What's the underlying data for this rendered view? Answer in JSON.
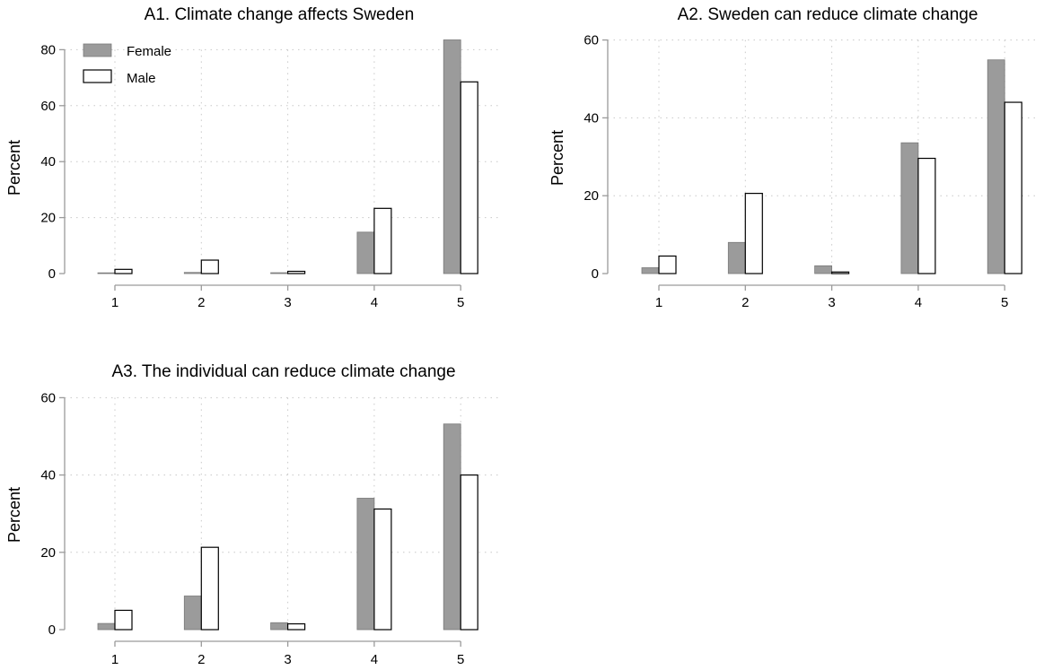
{
  "chart_data": [
    {
      "type": "bar",
      "title": "A1. Climate change affects Sweden",
      "ylabel": "Percent",
      "xlabel": "",
      "categories": [
        "1",
        "2",
        "3",
        "4",
        "5"
      ],
      "ylim": [
        0,
        83
      ],
      "yticks": [
        "0",
        "20",
        "40",
        "60",
        "80"
      ],
      "grid": true,
      "legend": "top-left",
      "series": [
        {
          "name": "Female",
          "values": [
            0.2,
            0.4,
            0.3,
            14.8,
            83.5
          ],
          "color": "#9b9b9b"
        },
        {
          "name": "Male",
          "values": [
            1.5,
            4.8,
            0.8,
            23.3,
            68.5
          ],
          "color": "#ffffff"
        }
      ]
    },
    {
      "type": "bar",
      "title": "A2. Sweden can reduce climate change",
      "ylabel": "Percent",
      "xlabel": "",
      "categories": [
        "1",
        "2",
        "3",
        "4",
        "5"
      ],
      "ylim": [
        0,
        60
      ],
      "yticks": [
        "0",
        "20",
        "40",
        "60"
      ],
      "grid": true,
      "series": [
        {
          "name": "Female",
          "values": [
            1.5,
            8.0,
            2.0,
            33.6,
            54.9
          ],
          "color": "#9b9b9b"
        },
        {
          "name": "Male",
          "values": [
            4.5,
            20.6,
            0.4,
            29.6,
            44.0
          ],
          "color": "#ffffff"
        }
      ]
    },
    {
      "type": "bar",
      "title": "A3. The individual can reduce climate change",
      "ylabel": "Percent",
      "xlabel": "",
      "categories": [
        "1",
        "2",
        "3",
        "4",
        "5"
      ],
      "ylim": [
        0,
        60
      ],
      "yticks": [
        "0",
        "20",
        "40",
        "60"
      ],
      "grid": true,
      "series": [
        {
          "name": "Female",
          "values": [
            1.6,
            8.7,
            1.8,
            34.0,
            53.2
          ],
          "color": "#9b9b9b"
        },
        {
          "name": "Male",
          "values": [
            5.0,
            21.3,
            1.5,
            31.2,
            40.0
          ],
          "color": "#ffffff"
        }
      ]
    }
  ],
  "legend": {
    "female_label": "Female",
    "male_label": "Male"
  }
}
